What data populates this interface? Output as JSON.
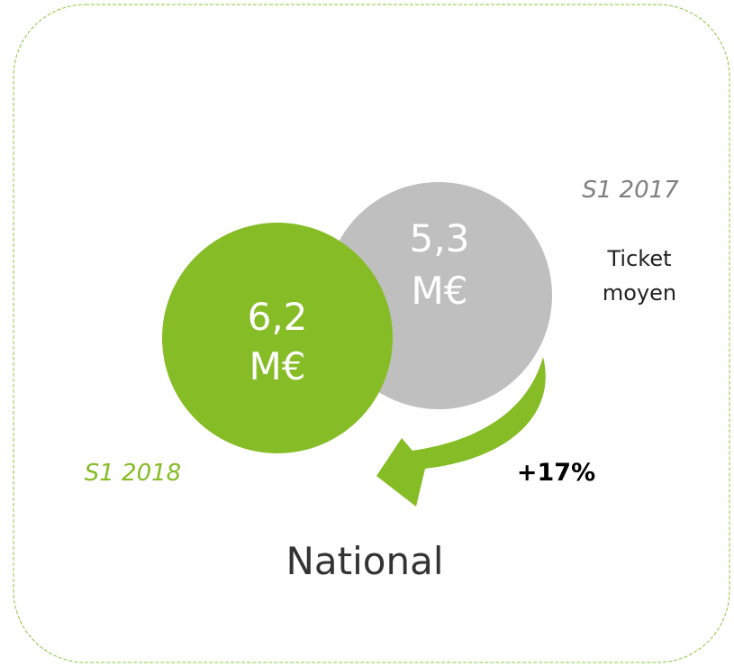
{
  "circles": [
    {
      "period": "S1 2018",
      "value": "6,2",
      "unit": "M€"
    },
    {
      "period": "S1 2017",
      "value": "5,3",
      "unit": "M€"
    }
  ],
  "metric": "Ticket moyen",
  "change": "+17%",
  "scope": "National"
}
